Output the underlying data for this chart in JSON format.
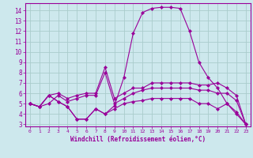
{
  "xlabel": "Windchill (Refroidissement éolien,°C)",
  "background_color": "#cde8ed",
  "grid_color": "#aacccc",
  "line_color": "#990099",
  "xlim": [
    -0.5,
    23.5
  ],
  "ylim": [
    2.8,
    14.7
  ],
  "yticks": [
    3,
    4,
    5,
    6,
    7,
    8,
    9,
    10,
    11,
    12,
    13,
    14
  ],
  "xticks": [
    0,
    1,
    2,
    3,
    4,
    5,
    6,
    7,
    8,
    9,
    10,
    11,
    12,
    13,
    14,
    15,
    16,
    17,
    18,
    19,
    20,
    21,
    22,
    23
  ],
  "lines": [
    {
      "x": [
        0,
        1,
        2,
        3,
        4,
        5,
        6,
        7,
        8,
        9,
        10,
        11,
        12,
        13,
        14,
        15,
        16,
        17,
        18,
        19,
        20,
        21,
        22,
        23
      ],
      "y": [
        5.0,
        4.7,
        5.8,
        5.2,
        4.7,
        3.5,
        3.5,
        4.5,
        4.0,
        4.8,
        7.5,
        11.8,
        13.8,
        14.2,
        14.3,
        14.3,
        14.2,
        12.0,
        9.0,
        7.5,
        6.5,
        5.0,
        4.0,
        3.0
      ]
    },
    {
      "x": [
        0,
        1,
        2,
        3,
        4,
        5,
        6,
        7,
        8,
        9,
        10,
        11,
        12,
        13,
        14,
        15,
        16,
        17,
        18,
        19,
        20,
        21,
        22,
        23
      ],
      "y": [
        5.0,
        4.7,
        5.8,
        6.0,
        5.5,
        5.8,
        6.0,
        6.0,
        8.5,
        5.5,
        6.0,
        6.5,
        6.5,
        7.0,
        7.0,
        7.0,
        7.0,
        7.0,
        6.8,
        6.8,
        7.0,
        6.5,
        5.8,
        3.0
      ]
    },
    {
      "x": [
        0,
        1,
        2,
        3,
        4,
        5,
        6,
        7,
        8,
        9,
        10,
        11,
        12,
        13,
        14,
        15,
        16,
        17,
        18,
        19,
        20,
        21,
        22,
        23
      ],
      "y": [
        5.0,
        4.7,
        5.0,
        5.8,
        5.2,
        5.5,
        5.8,
        5.8,
        8.0,
        5.0,
        5.5,
        6.0,
        6.3,
        6.5,
        6.5,
        6.5,
        6.5,
        6.5,
        6.3,
        6.3,
        6.0,
        6.0,
        5.3,
        3.0
      ]
    },
    {
      "x": [
        0,
        1,
        2,
        3,
        4,
        5,
        6,
        7,
        8,
        9,
        10,
        11,
        12,
        13,
        14,
        15,
        16,
        17,
        18,
        19,
        20,
        21,
        22,
        23
      ],
      "y": [
        5.0,
        4.7,
        5.8,
        5.2,
        4.7,
        3.5,
        3.5,
        4.5,
        4.0,
        4.5,
        5.0,
        5.2,
        5.3,
        5.5,
        5.5,
        5.5,
        5.5,
        5.5,
        5.0,
        5.0,
        4.5,
        5.0,
        4.2,
        3.0
      ]
    }
  ]
}
